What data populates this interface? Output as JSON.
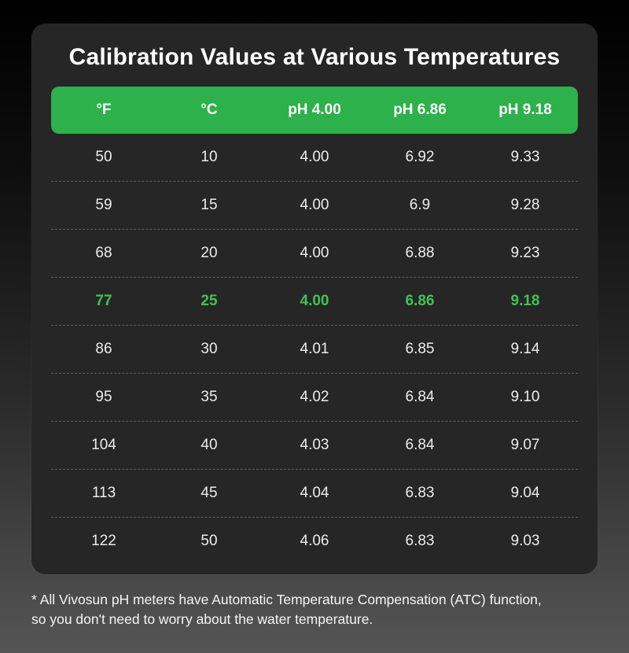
{
  "title": "Calibration Values at Various Temperatures",
  "colors": {
    "accent_green": "#2DB14A",
    "highlight_green": "#3CC551",
    "card_bg": "#262626"
  },
  "chart_data": {
    "type": "table",
    "title": "Calibration Values at Various Temperatures",
    "columns": [
      "°F",
      "°C",
      "pH 4.00",
      "pH 6.86",
      "pH 9.18"
    ],
    "rows": [
      [
        "50",
        "10",
        "4.00",
        "6.92",
        "9.33"
      ],
      [
        "59",
        "15",
        "4.00",
        "6.9",
        "9.28"
      ],
      [
        "68",
        "20",
        "4.00",
        "6.88",
        "9.23"
      ],
      [
        "77",
        "25",
        "4.00",
        "6.86",
        "9.18"
      ],
      [
        "86",
        "30",
        "4.01",
        "6.85",
        "9.14"
      ],
      [
        "95",
        "35",
        "4.02",
        "6.84",
        "9.10"
      ],
      [
        "104",
        "40",
        "4.03",
        "6.84",
        "9.07"
      ],
      [
        "113",
        "45",
        "4.04",
        "6.83",
        "9.04"
      ],
      [
        "122",
        "50",
        "4.06",
        "6.83",
        "9.03"
      ]
    ],
    "highlighted_row_index": 3
  },
  "footnote": {
    "line1": "* All Vivosun pH meters have Automatic Temperature Compensation (ATC) function,",
    "line2": "so you don't need to worry about the water temperature."
  }
}
